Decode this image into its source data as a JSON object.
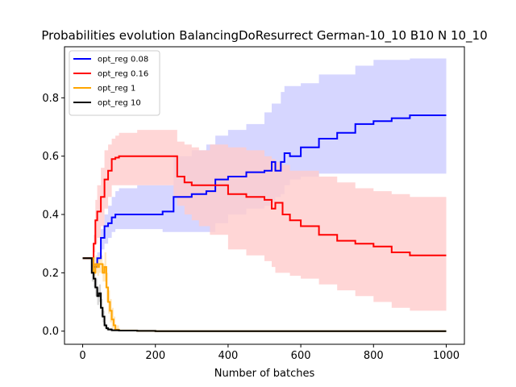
{
  "chart_data": {
    "type": "line",
    "title": "Probabilities evolution BalancingDoResurrect German-10_10 B10 N 10_10",
    "xlabel": "Number of batches",
    "ylabel": "",
    "xlim": [
      -50,
      1050
    ],
    "ylim": [
      -0.045,
      0.975
    ],
    "xticks": [
      0,
      200,
      400,
      600,
      800,
      1000
    ],
    "yticks": [
      0.0,
      0.2,
      0.4,
      0.6,
      0.8
    ],
    "xtick_labels": [
      "0",
      "200",
      "400",
      "600",
      "800",
      "1000"
    ],
    "ytick_labels": [
      "0.0",
      "0.2",
      "0.4",
      "0.6",
      "0.8"
    ],
    "grid": false,
    "legend_position": "top-left",
    "series": [
      {
        "name": "opt_reg 0.08",
        "color": "#0000ff",
        "band_color": "#ccccff",
        "x": [
          0,
          25,
          30,
          40,
          50,
          60,
          70,
          80,
          90,
          100,
          150,
          200,
          220,
          250,
          300,
          340,
          365,
          400,
          450,
          500,
          520,
          530,
          545,
          555,
          570,
          600,
          650,
          700,
          750,
          800,
          850,
          900,
          1000
        ],
        "y": [
          0.25,
          0.25,
          0.22,
          0.25,
          0.32,
          0.36,
          0.37,
          0.39,
          0.4,
          0.4,
          0.4,
          0.4,
          0.41,
          0.46,
          0.47,
          0.48,
          0.52,
          0.53,
          0.545,
          0.55,
          0.58,
          0.55,
          0.58,
          0.61,
          0.6,
          0.63,
          0.66,
          0.68,
          0.71,
          0.72,
          0.73,
          0.74,
          0.74
        ],
        "lower": [
          0.25,
          0.25,
          0.22,
          0.24,
          0.28,
          0.3,
          0.32,
          0.34,
          0.35,
          0.35,
          0.35,
          0.35,
          0.34,
          0.34,
          0.34,
          0.34,
          0.37,
          0.4,
          0.42,
          0.43,
          0.44,
          0.46,
          0.47,
          0.5,
          0.52,
          0.53,
          0.54,
          0.54,
          0.54,
          0.54,
          0.54,
          0.54,
          0.54
        ],
        "upper": [
          0.25,
          0.25,
          0.22,
          0.27,
          0.35,
          0.4,
          0.43,
          0.46,
          0.48,
          0.49,
          0.5,
          0.5,
          0.5,
          0.6,
          0.62,
          0.64,
          0.67,
          0.69,
          0.71,
          0.75,
          0.78,
          0.78,
          0.82,
          0.84,
          0.84,
          0.85,
          0.88,
          0.88,
          0.91,
          0.93,
          0.93,
          0.935,
          0.935
        ]
      },
      {
        "name": "opt_reg 0.16",
        "color": "#ff0000",
        "band_color": "#ffcccc",
        "x": [
          0,
          25,
          30,
          35,
          40,
          50,
          60,
          70,
          80,
          90,
          100,
          150,
          200,
          250,
          260,
          280,
          300,
          320,
          350,
          400,
          450,
          500,
          520,
          530,
          550,
          570,
          600,
          650,
          700,
          750,
          800,
          850,
          900,
          1000
        ],
        "y": [
          0.25,
          0.25,
          0.3,
          0.38,
          0.41,
          0.46,
          0.52,
          0.55,
          0.59,
          0.595,
          0.6,
          0.6,
          0.6,
          0.6,
          0.53,
          0.51,
          0.5,
          0.5,
          0.5,
          0.47,
          0.46,
          0.45,
          0.42,
          0.44,
          0.4,
          0.38,
          0.36,
          0.33,
          0.31,
          0.3,
          0.29,
          0.27,
          0.26,
          0.26
        ],
        "lower": [
          0.25,
          0.25,
          0.27,
          0.3,
          0.32,
          0.36,
          0.42,
          0.46,
          0.5,
          0.5,
          0.5,
          0.5,
          0.5,
          0.46,
          0.43,
          0.4,
          0.38,
          0.36,
          0.33,
          0.28,
          0.26,
          0.24,
          0.22,
          0.2,
          0.2,
          0.19,
          0.18,
          0.16,
          0.14,
          0.12,
          0.1,
          0.08,
          0.07,
          0.06
        ],
        "upper": [
          0.25,
          0.25,
          0.33,
          0.45,
          0.5,
          0.56,
          0.62,
          0.64,
          0.66,
          0.67,
          0.68,
          0.69,
          0.69,
          0.69,
          0.65,
          0.64,
          0.63,
          0.62,
          0.64,
          0.63,
          0.62,
          0.6,
          0.59,
          0.58,
          0.57,
          0.55,
          0.55,
          0.53,
          0.51,
          0.49,
          0.48,
          0.47,
          0.46,
          0.455
        ]
      },
      {
        "name": "opt_reg 1",
        "color": "#ffa500",
        "band_color": "#ffe4b3",
        "x": [
          0,
          20,
          30,
          35,
          40,
          45,
          50,
          55,
          60,
          65,
          70,
          75,
          80,
          85,
          90,
          100,
          150,
          200,
          1000
        ],
        "y": [
          0.25,
          0.25,
          0.2,
          0.23,
          0.22,
          0.23,
          0.23,
          0.2,
          0.22,
          0.15,
          0.1,
          0.07,
          0.04,
          0.02,
          0.005,
          0.002,
          0.001,
          0.0,
          0.0
        ],
        "lower": [
          0.25,
          0.25,
          0.17,
          0.2,
          0.19,
          0.2,
          0.2,
          0.17,
          0.17,
          0.1,
          0.06,
          0.03,
          0.01,
          0.0,
          0.0,
          0.0,
          0.0,
          0.0,
          0.0
        ],
        "upper": [
          0.25,
          0.25,
          0.23,
          0.26,
          0.25,
          0.26,
          0.26,
          0.23,
          0.27,
          0.2,
          0.14,
          0.11,
          0.08,
          0.05,
          0.02,
          0.006,
          0.003,
          0.001,
          0.001
        ]
      },
      {
        "name": "opt_reg 10",
        "color": "#000000",
        "band_color": "#cccccc",
        "x": [
          0,
          20,
          25,
          30,
          35,
          40,
          45,
          50,
          55,
          60,
          65,
          70,
          80,
          100,
          150,
          200,
          1000
        ],
        "y": [
          0.25,
          0.25,
          0.2,
          0.18,
          0.15,
          0.12,
          0.13,
          0.08,
          0.05,
          0.02,
          0.01,
          0.006,
          0.003,
          0.002,
          0.001,
          0.0,
          0.0
        ],
        "lower": [
          0.25,
          0.25,
          0.17,
          0.15,
          0.12,
          0.09,
          0.1,
          0.05,
          0.03,
          0.01,
          0.003,
          0.001,
          0.0,
          0.0,
          0.0,
          0.0,
          0.0
        ],
        "upper": [
          0.25,
          0.25,
          0.23,
          0.21,
          0.18,
          0.15,
          0.16,
          0.11,
          0.07,
          0.03,
          0.017,
          0.011,
          0.006,
          0.004,
          0.002,
          0.001,
          0.001
        ]
      }
    ]
  }
}
